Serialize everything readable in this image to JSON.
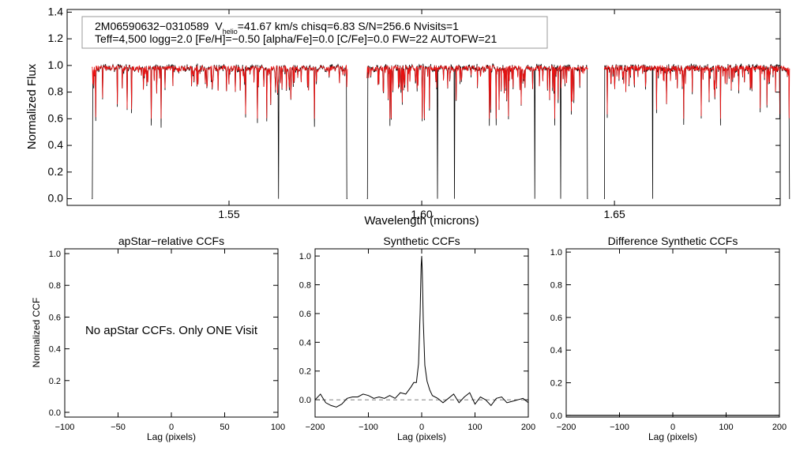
{
  "chart_data": [
    {
      "id": "spectrum",
      "type": "line",
      "xlabel": "Wavelength (microns)",
      "ylabel": "Normalized Flux",
      "xlim": [
        1.508,
        1.693
      ],
      "ylim": [
        -0.05,
        1.42
      ],
      "xticks": [
        1.55,
        1.6,
        1.65
      ],
      "xtick_labels": [
        "1.55",
        "1.60",
        "1.65"
      ],
      "yticks": [
        0.0,
        0.2,
        0.4,
        0.6,
        0.8,
        1.0,
        1.2,
        1.4
      ],
      "ytick_labels": [
        "0.0",
        "0.2",
        "0.4",
        "0.6",
        "0.8",
        "1.0",
        "1.2",
        "1.4"
      ],
      "chips": [
        [
          1.5144,
          1.5807
        ],
        [
          1.5858,
          1.6431
        ],
        [
          1.6473,
          1.6955
        ]
      ],
      "series": [
        {
          "name": "observed spectrum",
          "color": "#000000"
        },
        {
          "name": "synthetic model",
          "color": "#ee1111"
        }
      ],
      "legend": {
        "star_id": "2M06590632−0310589",
        "v_prefix": "V",
        "v_sub": "helio",
        "v_rest": "=41.67 km/s  chisq=6.83  S/N=256.6  Nvisits=1",
        "params": "Teff=4,500 logg=2.0 [Fe/H]=−0.50 [alpha/Fe]=0.0 [C/Fe]=0.0 FW=22 AUTOFW=21"
      }
    },
    {
      "id": "apstar-ccf",
      "type": "line",
      "title": "apStar−relative CCFs",
      "xlabel": "Lag (pixels)",
      "ylabel": "Normalized CCF",
      "xlim": [
        -100,
        100
      ],
      "ylim": [
        -0.03,
        1.03
      ],
      "xticks": [
        -100,
        -50,
        0,
        50,
        100
      ],
      "xtick_labels": [
        "−100",
        "−50",
        "0",
        "50",
        "100"
      ],
      "yticks": [
        0.0,
        0.2,
        0.4,
        0.6,
        0.8,
        1.0
      ],
      "ytick_labels": [
        "0.0",
        "0.2",
        "0.4",
        "0.6",
        "0.8",
        "1.0"
      ],
      "message": "No apStar CCFs.  Only ONE Visit",
      "series": []
    },
    {
      "id": "synthetic-ccf",
      "type": "line",
      "title": "Synthetic CCFs",
      "xlabel": "Lag (pixels)",
      "xlim": [
        -200,
        200
      ],
      "ylim": [
        -0.12,
        1.05
      ],
      "xticks": [
        -200,
        -100,
        0,
        100,
        200
      ],
      "xtick_labels": [
        "−200",
        "−100",
        "0",
        "100",
        "200"
      ],
      "yticks": [
        0.0,
        0.2,
        0.4,
        0.6,
        0.8,
        1.0
      ],
      "ytick_labels": [
        "0.0",
        "0.2",
        "0.4",
        "0.6",
        "0.8",
        "1.0"
      ],
      "zero_line": true,
      "series": [
        {
          "name": "synthetic CCF",
          "x": [
            -200,
            -190,
            -180,
            -170,
            -160,
            -150,
            -140,
            -130,
            -120,
            -110,
            -100,
            -90,
            -80,
            -70,
            -60,
            -50,
            -40,
            -30,
            -20,
            -15,
            -10,
            -6,
            -3,
            -1,
            0,
            1,
            3,
            6,
            10,
            15,
            20,
            30,
            40,
            50,
            60,
            70,
            80,
            90,
            100,
            110,
            120,
            130,
            140,
            150,
            160,
            170,
            180,
            190,
            200
          ],
          "y": [
            0.0,
            0.04,
            -0.02,
            -0.04,
            -0.05,
            -0.03,
            0.01,
            0.02,
            0.02,
            0.04,
            0.03,
            0.01,
            0.02,
            0.01,
            0.03,
            0.01,
            0.05,
            0.04,
            0.09,
            0.12,
            0.12,
            0.25,
            0.6,
            0.93,
            1.0,
            0.9,
            0.55,
            0.24,
            0.13,
            0.07,
            0.03,
            0.01,
            -0.02,
            0.01,
            0.04,
            -0.02,
            0.02,
            0.05,
            -0.03,
            0.02,
            0.0,
            -0.04,
            0.01,
            0.02,
            -0.02,
            -0.01,
            0.0,
            0.01,
            -0.02
          ]
        }
      ]
    },
    {
      "id": "difference-ccf",
      "type": "line",
      "title": "Difference Synthetic CCFs",
      "xlabel": "Lag (pixels)",
      "xlim": [
        -200,
        200
      ],
      "ylim": [
        -0.01,
        1.02
      ],
      "xticks": [
        -200,
        -100,
        0,
        100,
        200
      ],
      "xtick_labels": [
        "−200",
        "−100",
        "0",
        "100",
        "200"
      ],
      "yticks": [
        0.0,
        0.2,
        0.4,
        0.6,
        0.8,
        1.0
      ],
      "ytick_labels": [
        "0.0",
        "0.2",
        "0.4",
        "0.6",
        "0.8",
        "1.0"
      ],
      "series": [
        {
          "name": "difference CCF",
          "x": [
            -200,
            200
          ],
          "y": [
            0.0,
            0.0
          ]
        }
      ]
    }
  ]
}
